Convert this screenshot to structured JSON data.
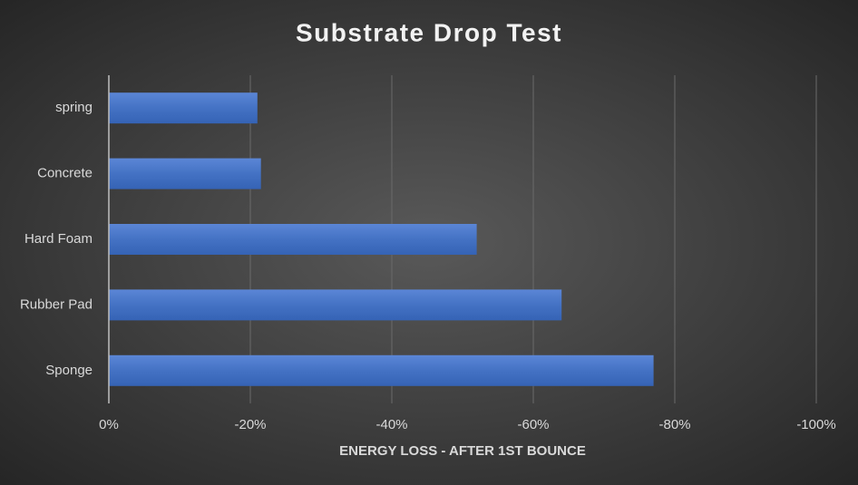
{
  "chart_data": {
    "type": "hbar",
    "title": "Substrate Drop Test",
    "x_label": "ENERGY LOSS - AFTER 1ST BOUNCE",
    "categories": [
      "spring",
      "Concrete",
      "Hard Foam",
      "Rubber Pad",
      "Sponge"
    ],
    "values": [
      -21,
      -21.5,
      -52,
      -64,
      -77
    ],
    "color": "#4472c4",
    "xlim": [
      0,
      -100
    ],
    "xticks": [
      {
        "value": 0,
        "label": "0%"
      },
      {
        "value": -20,
        "label": "-20%"
      },
      {
        "value": -40,
        "label": "-40%"
      },
      {
        "value": -60,
        "label": "-60%"
      },
      {
        "value": -80,
        "label": "-80%"
      },
      {
        "value": -100,
        "label": "-100%"
      }
    ],
    "grid": true
  }
}
